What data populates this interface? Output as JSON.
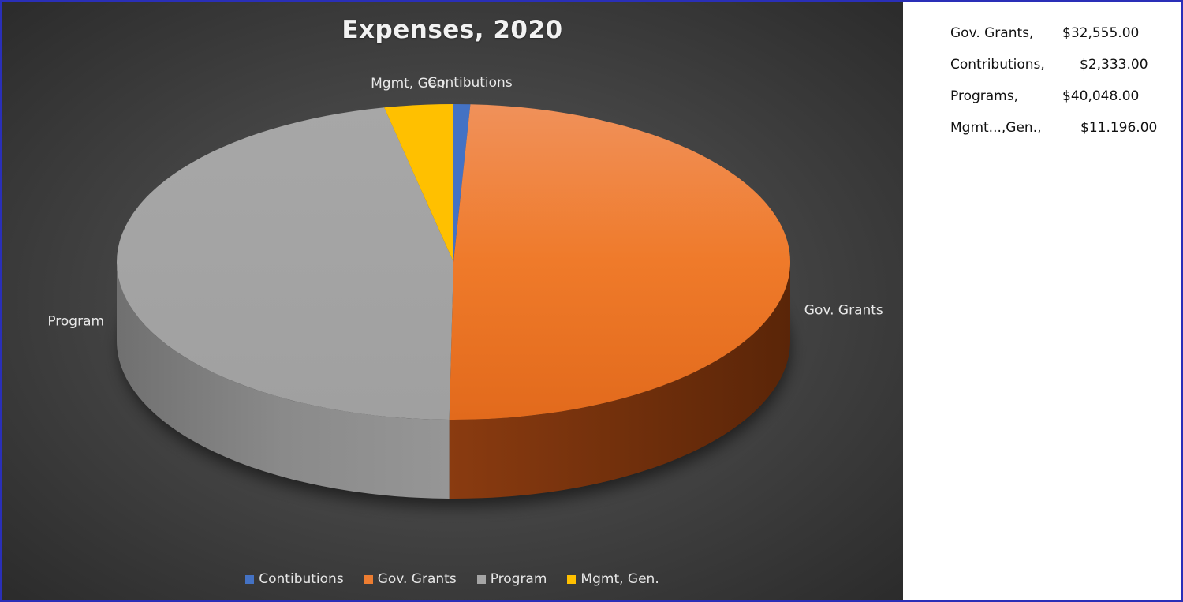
{
  "chart_data": {
    "type": "pie",
    "title": "Expenses, 2020",
    "categories": [
      "Contibutions",
      "Gov. Grants",
      "Program",
      "Mgmt, Gen."
    ],
    "values": [
      0.8,
      49.4,
      46.5,
      3.3
    ],
    "colors": [
      "#4472c4",
      "#ed7d31",
      "#a5a5a5",
      "#ffc000"
    ],
    "style": "3d",
    "legend": "bottom"
  },
  "side_panel": {
    "rows": [
      {
        "label": "Gov. Grants,",
        "value": "$32,555.00"
      },
      {
        "label": "Contributions,",
        "value": "$2,333.00"
      },
      {
        "label": "Programs,",
        "value": "$40,048.00"
      },
      {
        "label": "Mgmt...,Gen.,",
        "value": "$11.196.00"
      }
    ]
  }
}
